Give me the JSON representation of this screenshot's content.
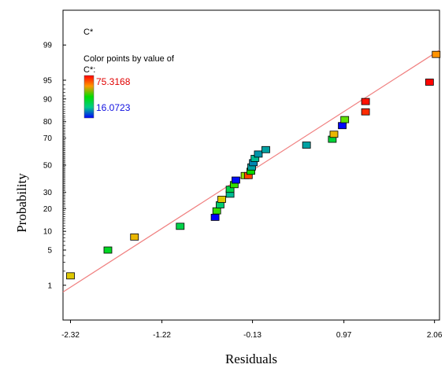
{
  "chart_data": {
    "type": "scatter",
    "title": "C*",
    "xlabel": "Residuals",
    "ylabel": "Probability",
    "x_ticks": [
      "-2.32",
      "-1.22",
      "-0.13",
      "0.97",
      "2.06"
    ],
    "x_tick_values": [
      -2.32,
      -1.22,
      -0.13,
      0.97,
      2.06
    ],
    "y_ticks": [
      "1",
      "5",
      "10",
      "20",
      "30",
      "50",
      "70",
      "80",
      "90",
      "95",
      "99"
    ],
    "y_tick_values": [
      1,
      5,
      10,
      20,
      30,
      50,
      70,
      80,
      90,
      95,
      99
    ],
    "y_scale": "normal-probability",
    "xlim": [
      -2.41,
      2.12
    ],
    "ylim": [
      0.135,
      99.865
    ],
    "grid": false,
    "color_legend": {
      "heading": "Color points by value of",
      "variable": "C*:",
      "max_label": "75.3168",
      "min_label": "16.0723",
      "max_value": 75.3168,
      "min_value": 16.0723,
      "placement": "top-left"
    },
    "reference_line": {
      "x": [
        -2.41,
        2.12
      ],
      "y": [
        0.7,
        98.7
      ],
      "color": "#f08080"
    },
    "points": [
      {
        "x": -2.32,
        "y": 1.6,
        "c": 58
      },
      {
        "x": -1.87,
        "y": 5.0,
        "c": 42
      },
      {
        "x": -1.55,
        "y": 8.2,
        "c": 60
      },
      {
        "x": -1.0,
        "y": 11.8,
        "c": 38
      },
      {
        "x": -0.58,
        "y": 15.6,
        "c": 16
      },
      {
        "x": -0.56,
        "y": 18.8,
        "c": 48
      },
      {
        "x": -0.52,
        "y": 22.1,
        "c": 34
      },
      {
        "x": -0.5,
        "y": 25.4,
        "c": 58
      },
      {
        "x": -0.4,
        "y": 28.7,
        "c": 30
      },
      {
        "x": -0.4,
        "y": 32.0,
        "c": 38
      },
      {
        "x": -0.35,
        "y": 35.3,
        "c": 48
      },
      {
        "x": -0.33,
        "y": 38.6,
        "c": 17
      },
      {
        "x": -0.22,
        "y": 42.0,
        "c": 52
      },
      {
        "x": -0.18,
        "y": 42.0,
        "c": 70
      },
      {
        "x": -0.15,
        "y": 45.3,
        "c": 46
      },
      {
        "x": -0.14,
        "y": 48.6,
        "c": 28
      },
      {
        "x": -0.12,
        "y": 51.9,
        "c": 26
      },
      {
        "x": -0.1,
        "y": 55.2,
        "c": 30
      },
      {
        "x": -0.06,
        "y": 58.5,
        "c": 27
      },
      {
        "x": 0.03,
        "y": 61.8,
        "c": 28
      },
      {
        "x": 0.52,
        "y": 65.1,
        "c": 28
      },
      {
        "x": 0.83,
        "y": 69.2,
        "c": 40
      },
      {
        "x": 0.85,
        "y": 72.5,
        "c": 60
      },
      {
        "x": 0.95,
        "y": 77.8,
        "c": 16.5
      },
      {
        "x": 0.98,
        "y": 81.1,
        "c": 50
      },
      {
        "x": 1.23,
        "y": 84.9,
        "c": 72
      },
      {
        "x": 1.23,
        "y": 89.1,
        "c": 74
      },
      {
        "x": 2.0,
        "y": 94.6,
        "c": 75
      },
      {
        "x": 2.08,
        "y": 98.4,
        "c": 64
      }
    ]
  }
}
